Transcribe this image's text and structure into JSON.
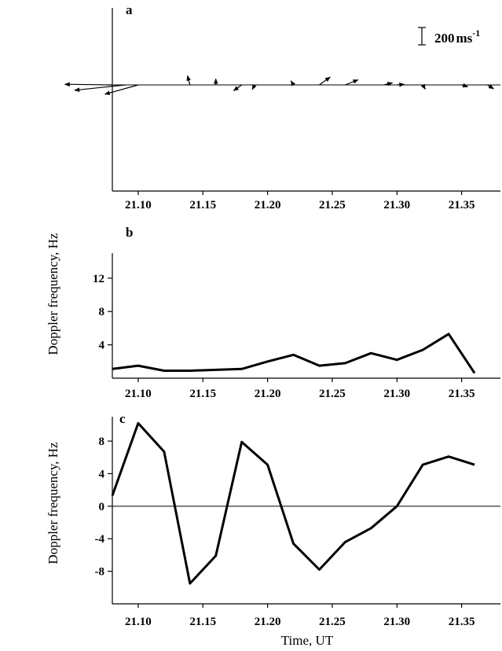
{
  "chart_data": [
    {
      "panel": "a",
      "type": "vector",
      "scale_bar": {
        "value": "200",
        "unit": "ms",
        "exponent": "-1"
      },
      "x_ticks": [
        "21.10",
        "21.15",
        "21.20",
        "21.25",
        "21.30",
        "21.35"
      ],
      "xlim": [
        21.08,
        21.38
      ],
      "vectors": [
        {
          "t": 21.08,
          "angle_deg": 179.2,
          "speed": 550
        },
        {
          "t": 21.09,
          "angle_deg": 186.0,
          "speed": 590
        },
        {
          "t": 21.1,
          "angle_deg": 195.5,
          "speed": 400
        },
        {
          "t": 21.14,
          "angle_deg": 105.5,
          "speed": 110
        },
        {
          "t": 21.16,
          "angle_deg": 90.0,
          "speed": 70
        },
        {
          "t": 21.18,
          "angle_deg": 216.0,
          "speed": 115
        },
        {
          "t": 21.19,
          "angle_deg": 243.0,
          "speed": 60
        },
        {
          "t": 21.22,
          "angle_deg": 121.0,
          "speed": 55
        },
        {
          "t": 21.24,
          "angle_deg": 36.0,
          "speed": 155
        },
        {
          "t": 21.26,
          "angle_deg": 21.5,
          "speed": 160
        },
        {
          "t": 21.29,
          "angle_deg": 14.0,
          "speed": 100
        },
        {
          "t": 21.3,
          "angle_deg": 4.0,
          "speed": 85
        },
        {
          "t": 21.32,
          "angle_deg": 300.0,
          "speed": 58
        },
        {
          "t": 21.35,
          "angle_deg": 343.0,
          "speed": 75
        },
        {
          "t": 21.37,
          "angle_deg": 327.5,
          "speed": 85
        }
      ]
    },
    {
      "panel": "b",
      "type": "line",
      "ylabel": "Doppler frequency, Hz",
      "xlabel": "",
      "x_ticks": [
        "21.10",
        "21.15",
        "21.20",
        "21.25",
        "21.30",
        "21.35"
      ],
      "y_ticks": [
        "4",
        "8",
        "12"
      ],
      "xlim": [
        21.08,
        21.38
      ],
      "ylim": [
        0,
        15
      ],
      "x": [
        21.08,
        21.1,
        21.12,
        21.14,
        21.16,
        21.18,
        21.2,
        21.22,
        21.24,
        21.26,
        21.28,
        21.3,
        21.32,
        21.34,
        21.36
      ],
      "y": [
        1.1,
        1.5,
        0.9,
        0.9,
        1.0,
        1.1,
        2.0,
        2.8,
        1.5,
        1.8,
        3.0,
        2.2,
        3.4,
        5.3,
        0.6
      ]
    },
    {
      "panel": "c",
      "type": "line",
      "ylabel": "Doppler frequency, Hz",
      "xlabel": "Time, UT",
      "x_ticks": [
        "21.10",
        "21.15",
        "21.20",
        "21.25",
        "21.30",
        "21.35"
      ],
      "y_ticks": [
        "-8",
        "-4",
        "0",
        "4",
        "8"
      ],
      "xlim": [
        21.08,
        21.38
      ],
      "ylim": [
        -12,
        11
      ],
      "zero_line": true,
      "x": [
        21.08,
        21.1,
        21.12,
        21.14,
        21.16,
        21.18,
        21.2,
        21.22,
        21.24,
        21.26,
        21.28,
        21.3,
        21.32,
        21.34,
        21.36
      ],
      "y": [
        1.3,
        10.2,
        6.7,
        -9.5,
        -6.1,
        7.9,
        5.1,
        -4.6,
        -7.8,
        -4.4,
        -2.7,
        0.0,
        5.1,
        6.1,
        5.1
      ]
    }
  ]
}
